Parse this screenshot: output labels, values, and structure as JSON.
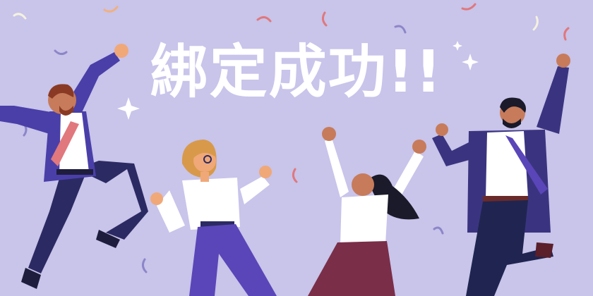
{
  "banner": {
    "headline": "綁定成功!!"
  },
  "colors": {
    "background": "#c8c4ea",
    "headline": "#ffffff",
    "suit_purple": "#4a3fa8",
    "suit_navy": "#2c2a63",
    "skirt": "#7a2e48",
    "confetti": [
      "#e0787d",
      "#8c86c8",
      "#f0a878"
    ]
  },
  "icons": [
    "sparkle-icon",
    "confetti"
  ]
}
